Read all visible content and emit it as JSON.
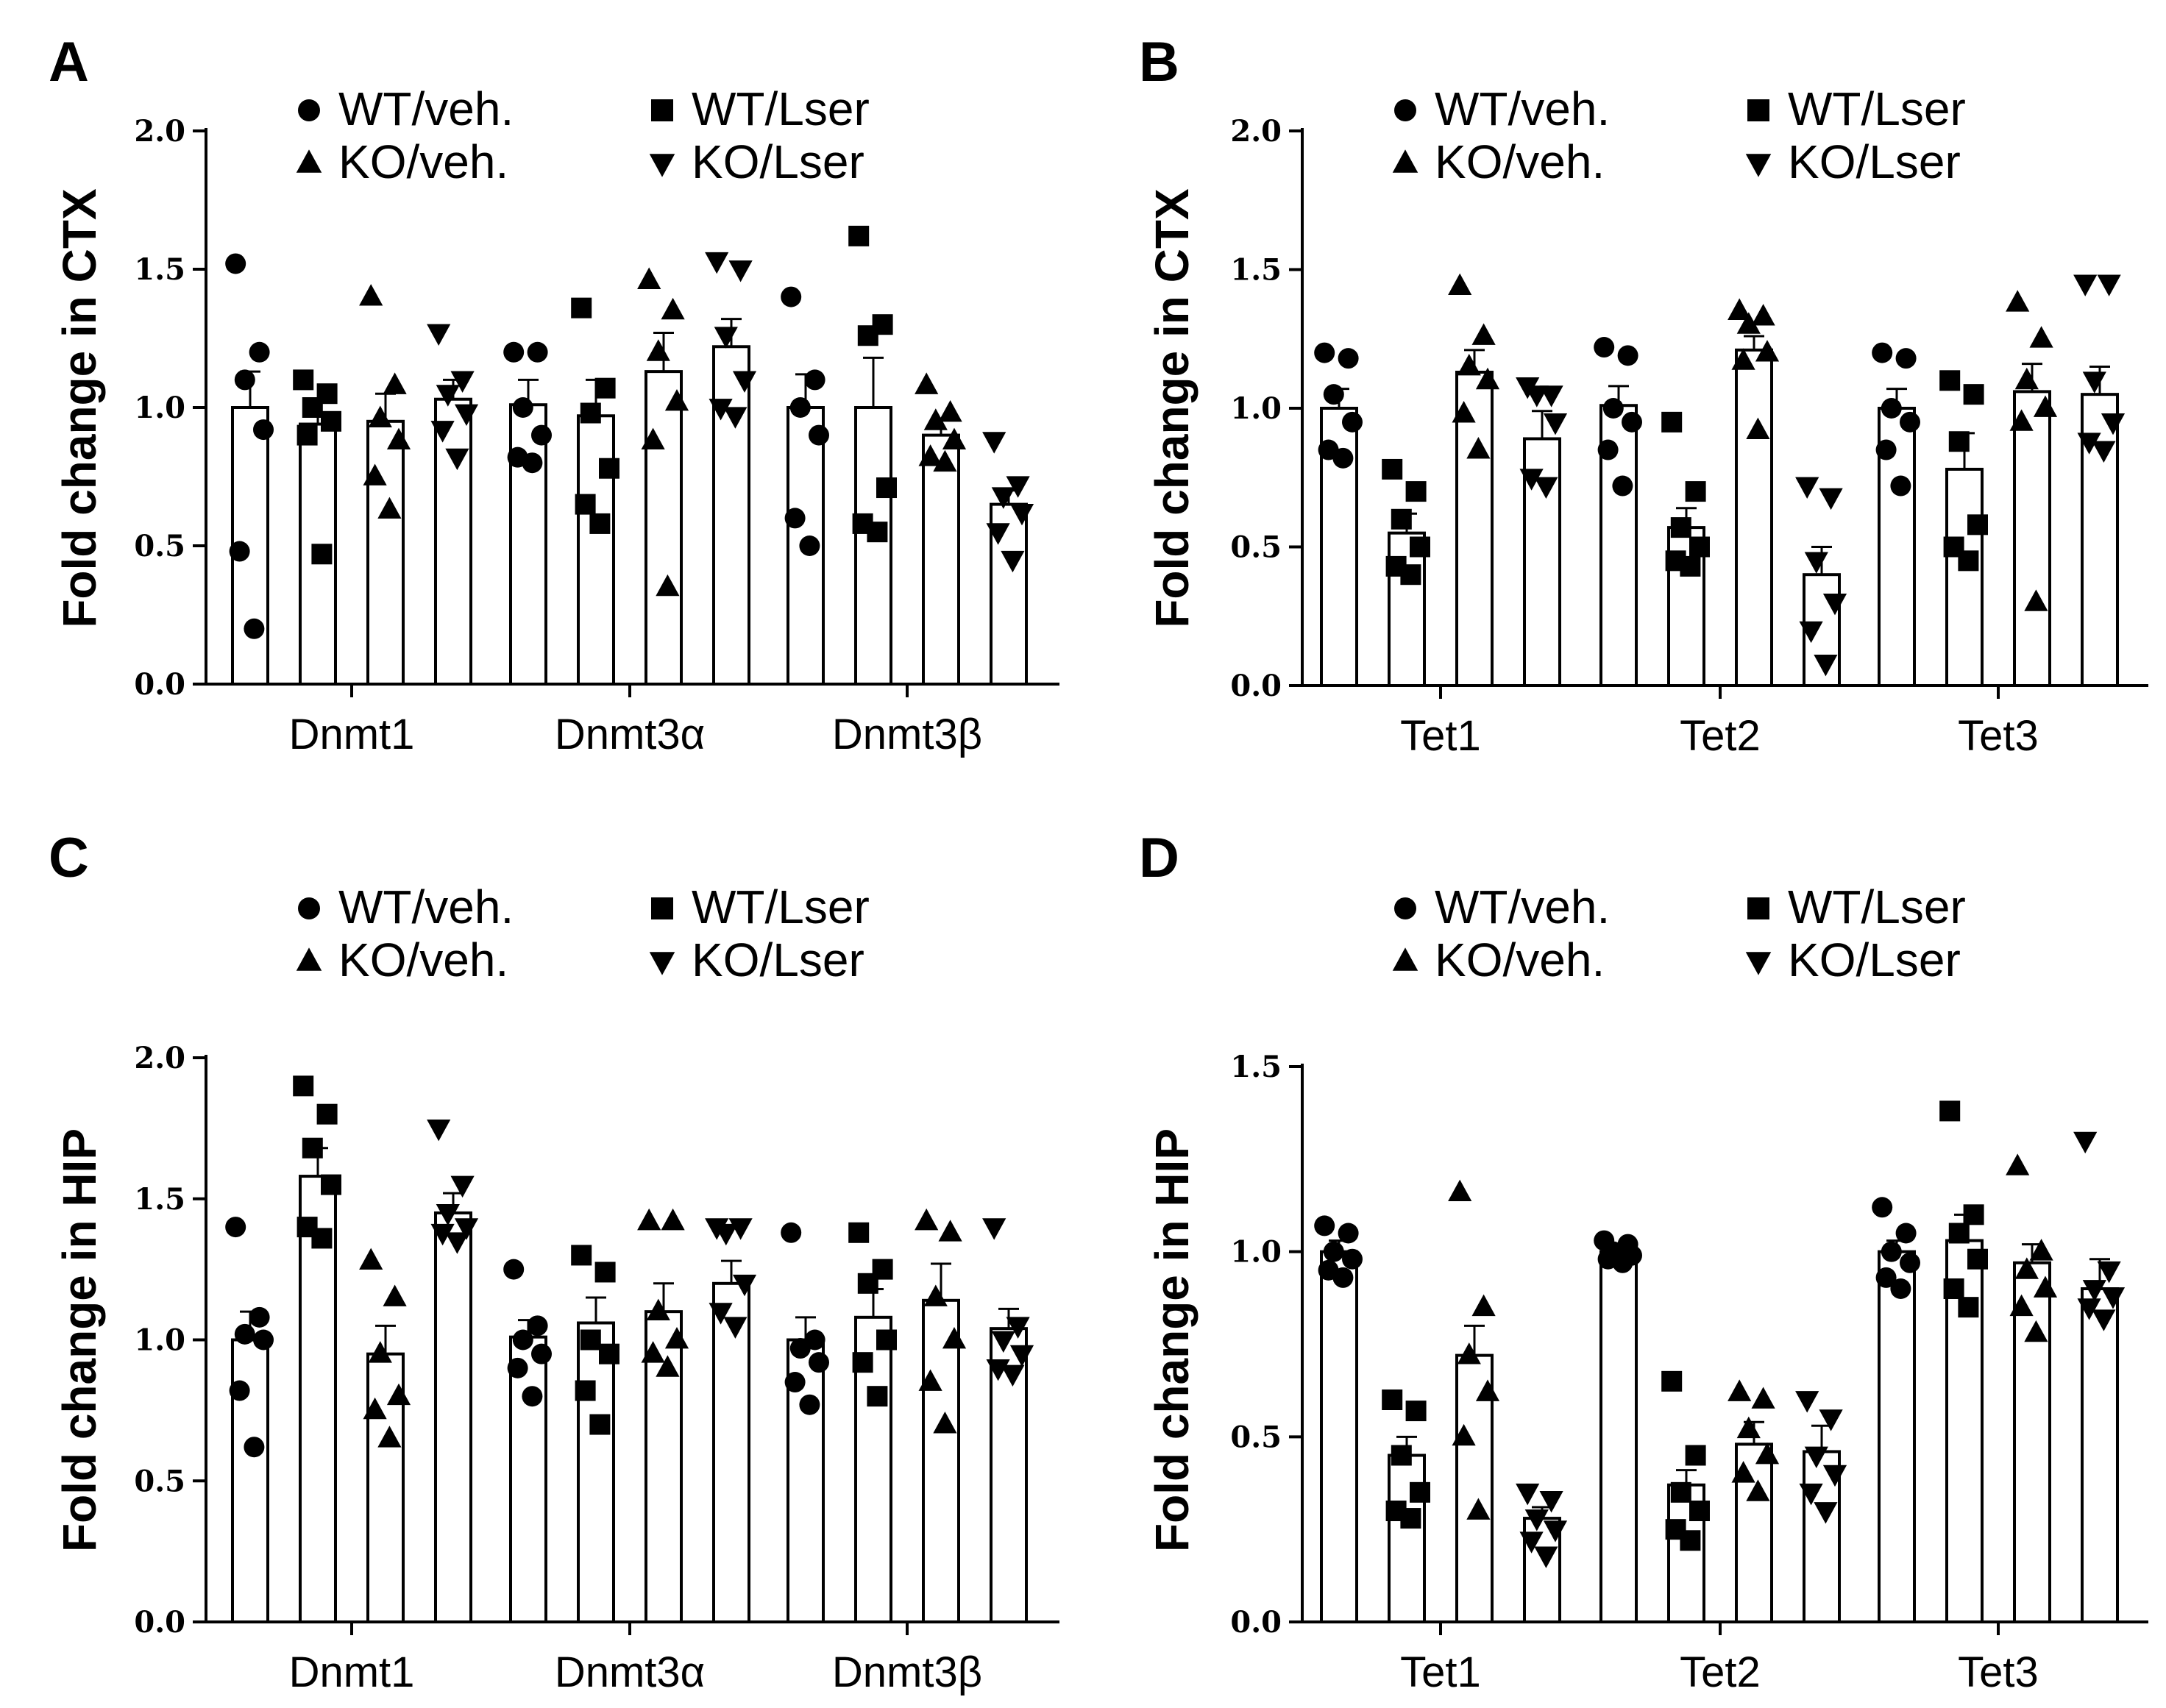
{
  "chart_data": [
    {
      "type": "bar",
      "panel": "A",
      "ylabel": "Fold change in CTX",
      "ylim": [
        0,
        2.0
      ],
      "yticks": [
        "0.0",
        "0.5",
        "1.0",
        "1.5",
        "2.0"
      ],
      "categories": [
        "Dnmt1",
        "Dnmt3α",
        "Dnmt3β"
      ],
      "legend": {
        "placement": "top",
        "entries": [
          "WT/veh.",
          "WT/Lser",
          "KO/veh.",
          "KO/Lser"
        ]
      },
      "series": [
        {
          "name": "WT/veh.",
          "marker": "circle",
          "values": [
            1.0,
            1.01,
            1.0
          ],
          "sem": [
            0.13,
            0.09,
            0.12
          ],
          "points": [
            [
              1.52,
              1.2,
              1.1,
              0.92,
              0.48,
              0.2
            ],
            [
              1.2,
              1.2,
              1.0,
              0.9,
              0.82,
              0.8
            ],
            [
              1.4,
              1.1,
              1.0,
              0.9,
              0.6,
              0.5
            ]
          ]
        },
        {
          "name": "WT/Lser",
          "marker": "square",
          "values": [
            0.94,
            0.97,
            1.0
          ],
          "sem": [
            0.08,
            0.13,
            0.18
          ],
          "points": [
            [
              1.1,
              1.05,
              1.0,
              0.95,
              0.9,
              0.47
            ],
            [
              1.36,
              1.07,
              0.98,
              0.78,
              0.65,
              0.58
            ],
            [
              1.62,
              1.3,
              1.26,
              0.71,
              0.58,
              0.55
            ]
          ]
        },
        {
          "name": "KO/veh.",
          "marker": "triangle-up",
          "values": [
            0.95,
            1.13,
            0.9
          ],
          "sem": [
            0.1,
            0.14,
            0.06
          ],
          "points": [
            [
              1.4,
              1.08,
              0.96,
              0.88,
              0.75,
              0.63
            ],
            [
              1.46,
              1.35,
              1.2,
              1.02,
              0.88,
              0.35
            ],
            [
              1.08,
              0.98,
              0.95,
              0.88,
              0.82,
              0.8
            ]
          ]
        },
        {
          "name": "KO/Lser",
          "marker": "triangle-down",
          "values": [
            1.03,
            1.22,
            0.65
          ],
          "sem": [
            0.07,
            0.1,
            0.05
          ],
          "points": [
            [
              1.27,
              1.1,
              1.05,
              0.98,
              0.92,
              0.82
            ],
            [
              1.53,
              1.5,
              1.26,
              1.1,
              1.0,
              0.97
            ],
            [
              0.88,
              0.72,
              0.68,
              0.62,
              0.55,
              0.45
            ]
          ]
        }
      ]
    },
    {
      "type": "bar",
      "panel": "B",
      "ylabel": "Fold change in CTX",
      "ylim": [
        0,
        2.0
      ],
      "yticks": [
        "0.0",
        "0.5",
        "1.0",
        "1.5",
        "2.0"
      ],
      "categories": [
        "Tet1",
        "Tet2",
        "Tet3"
      ],
      "legend": {
        "placement": "top",
        "entries": [
          "WT/veh.",
          "WT/Lser",
          "KO/veh.",
          "KO/Lser"
        ]
      },
      "series": [
        {
          "name": "WT/veh.",
          "marker": "circle",
          "values": [
            1.0,
            1.01,
            1.0
          ],
          "sem": [
            0.07,
            0.07,
            0.07
          ],
          "points": [
            [
              1.2,
              1.18,
              1.05,
              0.95,
              0.85,
              0.82
            ],
            [
              1.22,
              1.19,
              1.0,
              0.95,
              0.85,
              0.72
            ],
            [
              1.2,
              1.18,
              1.0,
              0.95,
              0.85,
              0.72
            ]
          ]
        },
        {
          "name": "WT/Lser",
          "marker": "square",
          "values": [
            0.55,
            0.57,
            0.78
          ],
          "sem": [
            0.07,
            0.07,
            0.13
          ],
          "points": [
            [
              0.78,
              0.7,
              0.6,
              0.5,
              0.43,
              0.4
            ],
            [
              0.95,
              0.7,
              0.57,
              0.5,
              0.45,
              0.43
            ],
            [
              1.1,
              1.05,
              0.88,
              0.58,
              0.5,
              0.45
            ]
          ]
        },
        {
          "name": "KO/veh.",
          "marker": "triangle-up",
          "values": [
            1.13,
            1.21,
            1.06
          ],
          "sem": [
            0.08,
            0.05,
            0.1
          ],
          "points": [
            [
              1.44,
              1.26,
              1.15,
              1.1,
              0.98,
              0.85
            ],
            [
              1.35,
              1.33,
              1.3,
              1.2,
              1.17,
              0.92
            ],
            [
              1.38,
              1.25,
              1.1,
              1.0,
              0.95,
              0.3
            ]
          ]
        },
        {
          "name": "KO/Lser",
          "marker": "triangle-down",
          "values": [
            0.89,
            0.4,
            1.05
          ],
          "sem": [
            0.1,
            0.1,
            0.1
          ],
          "points": [
            [
              1.08,
              1.05,
              1.05,
              0.95,
              0.75,
              0.72
            ],
            [
              0.72,
              0.68,
              0.45,
              0.3,
              0.2,
              0.08
            ],
            [
              1.45,
              1.45,
              1.1,
              0.95,
              0.88,
              0.85
            ]
          ]
        }
      ]
    },
    {
      "type": "bar",
      "panel": "C",
      "ylabel": "Fold change in HIP",
      "ylim": [
        0,
        2.0
      ],
      "yticks": [
        "0.0",
        "0.5",
        "1.0",
        "1.5",
        "2.0"
      ],
      "categories": [
        "Dnmt1",
        "Dnmt3α",
        "Dnmt3β"
      ],
      "legend": {
        "placement": "top",
        "entries": [
          "WT/veh.",
          "WT/Lser",
          "KO/veh.",
          "KO/Lser"
        ]
      },
      "series": [
        {
          "name": "WT/veh.",
          "marker": "circle",
          "values": [
            1.0,
            1.01,
            1.0
          ],
          "sem": [
            0.1,
            0.06,
            0.08
          ],
          "points": [
            [
              1.4,
              1.08,
              1.02,
              1.0,
              0.82,
              0.62
            ],
            [
              1.25,
              1.05,
              1.0,
              0.95,
              0.9,
              0.8
            ],
            [
              1.38,
              1.0,
              0.97,
              0.92,
              0.85,
              0.77
            ]
          ]
        },
        {
          "name": "WT/Lser",
          "marker": "square",
          "values": [
            1.58,
            1.06,
            1.08
          ],
          "sem": [
            0.1,
            0.09,
            0.1
          ],
          "points": [
            [
              1.9,
              1.8,
              1.68,
              1.55,
              1.4,
              1.36
            ],
            [
              1.3,
              1.24,
              1.0,
              0.95,
              0.82,
              0.7
            ],
            [
              1.38,
              1.25,
              1.2,
              1.0,
              0.92,
              0.8
            ]
          ]
        },
        {
          "name": "KO/veh.",
          "marker": "triangle-up",
          "values": [
            0.95,
            1.1,
            1.14
          ],
          "sem": [
            0.1,
            0.1,
            0.13
          ],
          "points": [
            [
              1.28,
              1.15,
              0.95,
              0.8,
              0.75,
              0.65
            ],
            [
              1.42,
              1.42,
              1.1,
              1.0,
              0.95,
              0.9
            ],
            [
              1.42,
              1.38,
              1.15,
              1.0,
              0.85,
              0.7
            ]
          ]
        },
        {
          "name": "KO/Lser",
          "marker": "triangle-down",
          "values": [
            1.45,
            1.2,
            1.04
          ],
          "sem": [
            0.07,
            0.08,
            0.07
          ],
          "points": [
            [
              1.75,
              1.55,
              1.45,
              1.4,
              1.38,
              1.35
            ],
            [
              1.4,
              1.4,
              1.38,
              1.2,
              1.1,
              1.05
            ],
            [
              1.4,
              1.05,
              1.0,
              0.95,
              0.9,
              0.88
            ]
          ]
        }
      ]
    },
    {
      "type": "bar",
      "panel": "D",
      "ylabel": "Fold change in HIP",
      "ylim": [
        0,
        1.5
      ],
      "yticks": [
        "0.0",
        "0.5",
        "1.0",
        "1.5"
      ],
      "categories": [
        "Tet1",
        "Tet2",
        "Tet3"
      ],
      "legend": {
        "placement": "top",
        "entries": [
          "WT/veh.",
          "WT/Lser",
          "KO/veh.",
          "KO/Lser"
        ]
      },
      "series": [
        {
          "name": "WT/veh.",
          "marker": "circle",
          "values": [
            1.0,
            1.0,
            1.0
          ],
          "sem": [
            0.03,
            0.01,
            0.03
          ],
          "points": [
            [
              1.07,
              1.05,
              1.0,
              0.98,
              0.95,
              0.93
            ],
            [
              1.03,
              1.02,
              1.0,
              0.99,
              0.98,
              0.97
            ],
            [
              1.12,
              1.05,
              1.0,
              0.97,
              0.93,
              0.9
            ]
          ]
        },
        {
          "name": "WT/Lser",
          "marker": "square",
          "values": [
            0.45,
            0.37,
            1.03
          ],
          "sem": [
            0.05,
            0.04,
            0.07
          ],
          "points": [
            [
              0.6,
              0.57,
              0.45,
              0.35,
              0.3,
              0.28
            ],
            [
              0.65,
              0.45,
              0.35,
              0.3,
              0.25,
              0.22
            ],
            [
              1.38,
              1.1,
              1.05,
              0.98,
              0.9,
              0.85
            ]
          ]
        },
        {
          "name": "KO/veh.",
          "marker": "triangle-up",
          "values": [
            0.72,
            0.48,
            0.97
          ],
          "sem": [
            0.08,
            0.06,
            0.05
          ],
          "points": [
            [
              1.16,
              0.85,
              0.72,
              0.62,
              0.5,
              0.3
            ],
            [
              0.62,
              0.6,
              0.52,
              0.45,
              0.4,
              0.35
            ],
            [
              1.23,
              1.0,
              0.95,
              0.9,
              0.85,
              0.78
            ]
          ]
        },
        {
          "name": "KO/Lser",
          "marker": "triangle-down",
          "values": [
            0.28,
            0.46,
            0.9
          ],
          "sem": [
            0.03,
            0.07,
            0.08
          ],
          "points": [
            [
              0.35,
              0.33,
              0.28,
              0.25,
              0.22,
              0.18
            ],
            [
              0.6,
              0.55,
              0.45,
              0.4,
              0.35,
              0.3
            ],
            [
              1.3,
              0.95,
              0.9,
              0.88,
              0.85,
              0.82
            ]
          ]
        }
      ]
    }
  ]
}
